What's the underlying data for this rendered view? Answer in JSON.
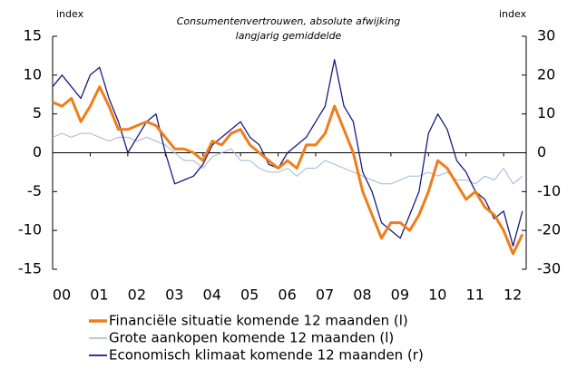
{
  "chart_data": {
    "type": "line",
    "title": "Consumentenvertrouwen,  absolute afwijking",
    "subtitle": "langjarig gemiddelde",
    "ylabel": "index",
    "y2label": "index",
    "x": [
      2000,
      2000.25,
      2000.5,
      2000.75,
      2001,
      2001.25,
      2001.5,
      2001.75,
      2002,
      2002.25,
      2002.5,
      2002.75,
      2003,
      2003.25,
      2003.5,
      2003.75,
      2004,
      2004.25,
      2004.5,
      2004.75,
      2005,
      2005.25,
      2005.5,
      2005.75,
      2006,
      2006.25,
      2006.5,
      2006.75,
      2007,
      2007.25,
      2007.5,
      2007.75,
      2008,
      2008.25,
      2008.5,
      2008.75,
      2009,
      2009.25,
      2009.5,
      2009.75,
      2010,
      2010.25,
      2010.5,
      2010.75,
      2011,
      2011.25,
      2011.5,
      2011.75,
      2012,
      2012.25,
      2012.5
    ],
    "series": [
      {
        "name": "Financiële situatie komende 12 maanden (l)",
        "color": "#f07d1a",
        "width": 3,
        "axis": "y",
        "values": [
          6.5,
          6,
          7,
          4,
          6,
          8.5,
          6,
          3,
          3,
          3.5,
          4,
          3.5,
          2,
          0.5,
          0.5,
          0,
          -1,
          1.5,
          1,
          2.5,
          3,
          1,
          0,
          -1,
          -2,
          -1,
          -2,
          1,
          1,
          2.5,
          6,
          3,
          0,
          -5,
          -8,
          -11,
          -9,
          -9,
          -10,
          -8,
          -5,
          -1,
          -2,
          -4,
          -6,
          -5,
          -7,
          -8,
          -10,
          -13,
          -10.5
        ]
      },
      {
        "name": "Grote aankopen komende 12 maanden (l)",
        "color": "#9cb8d8",
        "width": 1,
        "axis": "y",
        "values": [
          2,
          2.5,
          2,
          2.5,
          2.5,
          2,
          1.5,
          2,
          2,
          1.5,
          2,
          1.5,
          1,
          0,
          -1,
          -1,
          -2,
          -0.5,
          0,
          0.5,
          -1,
          -1,
          -2,
          -2.5,
          -2.5,
          -2,
          -3,
          -2,
          -2,
          -1,
          -1.5,
          -2,
          -2.5,
          -3,
          -3.5,
          -4,
          -4,
          -3.5,
          -3,
          -3,
          -2.5,
          -3,
          -2.5,
          -3.5,
          -3.5,
          -4,
          -3,
          -3.5,
          -2,
          -4,
          -3
        ]
      },
      {
        "name": "Economisch klimaat komende 12 maanden (r)",
        "color": "#1a1a80",
        "width": 1.3,
        "axis": "y2",
        "values": [
          17,
          20,
          17,
          14,
          20,
          22,
          14,
          8,
          0,
          4,
          8,
          10,
          0,
          -8,
          -7,
          -6,
          -3,
          2,
          4,
          6,
          8,
          4,
          2,
          -3,
          -4,
          0,
          2,
          4,
          8,
          12,
          24,
          12,
          8,
          -5,
          -10,
          -18,
          -20,
          -22,
          -16,
          -10,
          5,
          10,
          6,
          -2,
          -5,
          -10,
          -12,
          -17,
          -15,
          -24,
          -15
        ]
      }
    ],
    "xlim": [
      2000,
      2012.6
    ],
    "xticks": [
      {
        "value": 2000,
        "label": "00"
      },
      {
        "value": 2001,
        "label": "01"
      },
      {
        "value": 2002,
        "label": "02"
      },
      {
        "value": 2003,
        "label": "03"
      },
      {
        "value": 2004,
        "label": "04"
      },
      {
        "value": 2005,
        "label": "05"
      },
      {
        "value": 2006,
        "label": "06"
      },
      {
        "value": 2007,
        "label": "07"
      },
      {
        "value": 2008,
        "label": "08"
      },
      {
        "value": 2009,
        "label": "09"
      },
      {
        "value": 2010,
        "label": "10"
      },
      {
        "value": 2011,
        "label": "11"
      },
      {
        "value": 2012,
        "label": "12"
      }
    ],
    "ylim": [
      -15,
      15
    ],
    "yticks": [
      -15,
      -10,
      -5,
      0,
      5,
      10,
      15
    ],
    "y2lim": [
      -30,
      30
    ],
    "y2ticks": [
      -30,
      -20,
      -10,
      0,
      10,
      20,
      30
    ]
  }
}
